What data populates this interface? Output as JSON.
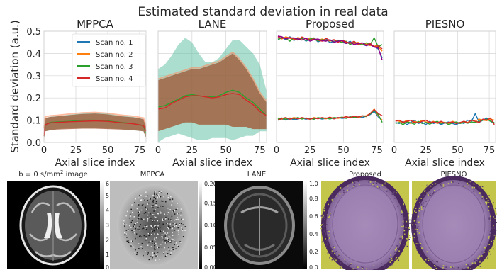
{
  "figure": {
    "title": "Estimated standard deviation in real data",
    "shared_ylabel": "Standard deviation (a.u.)",
    "shared_xlabel": "Axial slice index"
  },
  "colors": {
    "scan1": "#1f77b4",
    "scan2": "#ff7f0e",
    "scan3": "#2ca02c",
    "scan4": "#d62728",
    "band_green": "#66c2a5",
    "band_brown": "#a0522d",
    "band_red": "#fc8d62",
    "purple": "#8b008b",
    "mask_bg": "#9b7fb0",
    "mask_edge": "#c4c64c"
  },
  "chart_data": [
    {
      "type": "line",
      "title": "MPPCA",
      "xlabel": "Axial slice index",
      "ylabel": "Standard deviation (a.u.)",
      "xlim": [
        0,
        80
      ],
      "ylim": [
        0,
        0.5
      ],
      "xticks": [
        "0",
        "25",
        "50",
        "75"
      ],
      "yticks": [
        "0.0",
        "0.1",
        "0.2",
        "0.3",
        "0.4",
        "0.5"
      ],
      "legend": {
        "position": "top-right",
        "entries": [
          "Scan no. 1",
          "Scan no. 2",
          "Scan no. 3",
          "Scan no. 4"
        ]
      },
      "series": [
        {
          "name": "Scan no. 3",
          "color_key": "scan3",
          "x": [
            0,
            1,
            5,
            10,
            20,
            30,
            40,
            50,
            60,
            70,
            78,
            80
          ],
          "mean": [
            0.03,
            0.08,
            0.09,
            0.092,
            0.095,
            0.1,
            0.1,
            0.097,
            0.09,
            0.085,
            0.075,
            0.04
          ],
          "band_lo": [
            0.01,
            0.05,
            0.055,
            0.06,
            0.065,
            0.065,
            0.065,
            0.063,
            0.06,
            0.055,
            0.05,
            0.02
          ],
          "band_hi": [
            0.06,
            0.11,
            0.115,
            0.118,
            0.125,
            0.13,
            0.132,
            0.13,
            0.12,
            0.115,
            0.105,
            0.06
          ]
        },
        {
          "name": "Scan no. 4",
          "color_key": "scan4",
          "x": [
            0,
            1,
            5,
            10,
            20,
            30,
            40,
            50,
            60,
            70,
            78,
            80
          ],
          "mean": [
            0.03,
            0.08,
            0.088,
            0.09,
            0.093,
            0.095,
            0.097,
            0.095,
            0.089,
            0.084,
            0.076,
            0.05
          ],
          "band_lo": [
            0.01,
            0.05,
            0.055,
            0.058,
            0.06,
            0.062,
            0.062,
            0.06,
            0.058,
            0.055,
            0.05,
            0.02
          ],
          "band_hi": [
            0.06,
            0.11,
            0.115,
            0.117,
            0.123,
            0.128,
            0.13,
            0.126,
            0.118,
            0.113,
            0.105,
            0.07
          ]
        }
      ]
    },
    {
      "type": "line",
      "title": "LANE",
      "xlabel": "Axial slice index",
      "xlim": [
        0,
        80
      ],
      "ylim": [
        0,
        0.5
      ],
      "xticks": [
        "0",
        "25",
        "50",
        "75"
      ],
      "series": [
        {
          "name": "Scan no. 3",
          "color_key": "scan3",
          "x": [
            0,
            5,
            10,
            15,
            20,
            25,
            30,
            35,
            40,
            45,
            50,
            55,
            60,
            65,
            70,
            75,
            80
          ],
          "mean": [
            0.16,
            0.165,
            0.18,
            0.195,
            0.21,
            0.215,
            0.21,
            0.205,
            0.205,
            0.21,
            0.225,
            0.235,
            0.225,
            0.2,
            0.18,
            0.15,
            0.12
          ],
          "band_lo": [
            0.0,
            0.02,
            0.03,
            0.04,
            0.03,
            0.02,
            0.01,
            0.01,
            0.02,
            0.02,
            0.02,
            0.01,
            0.02,
            0.03,
            0.03,
            0.05,
            0.05
          ],
          "band_hi": [
            0.33,
            0.35,
            0.39,
            0.44,
            0.47,
            0.45,
            0.4,
            0.36,
            0.36,
            0.38,
            0.42,
            0.46,
            0.46,
            0.43,
            0.4,
            0.35,
            0.23
          ]
        },
        {
          "name": "Scan no. 4",
          "color_key": "scan4",
          "x": [
            0,
            5,
            10,
            15,
            20,
            25,
            30,
            35,
            40,
            45,
            50,
            55,
            60,
            65,
            70,
            75,
            80
          ],
          "mean": [
            0.15,
            0.155,
            0.175,
            0.19,
            0.205,
            0.21,
            0.21,
            0.205,
            0.2,
            0.205,
            0.215,
            0.22,
            0.215,
            0.19,
            0.17,
            0.14,
            0.12
          ],
          "band_lo": [
            0.05,
            0.06,
            0.07,
            0.08,
            0.09,
            0.09,
            0.08,
            0.08,
            0.08,
            0.08,
            0.08,
            0.07,
            0.07,
            0.07,
            0.06,
            0.06,
            0.06
          ],
          "band_hi": [
            0.28,
            0.29,
            0.3,
            0.31,
            0.32,
            0.33,
            0.33,
            0.34,
            0.35,
            0.36,
            0.38,
            0.4,
            0.37,
            0.33,
            0.28,
            0.22,
            0.18
          ]
        }
      ]
    },
    {
      "type": "line",
      "title": "Proposed",
      "xlabel": "Axial slice index",
      "xlim": [
        0,
        80
      ],
      "ylim": [
        0,
        0.5
      ],
      "xticks": [
        "0",
        "25",
        "50",
        "75"
      ],
      "series": [
        {
          "name": "Scan no. 1 (upper)",
          "color_key": "scan1",
          "x_start": 1,
          "x_step": 3,
          "values": [
            0.465,
            0.47,
            0.462,
            0.475,
            0.458,
            0.468,
            0.47,
            0.455,
            0.463,
            0.468,
            0.452,
            0.46,
            0.465,
            0.448,
            0.455,
            0.46,
            0.45,
            0.445,
            0.455,
            0.44,
            0.448,
            0.44,
            0.435,
            0.44,
            0.432,
            0.42,
            0.38
          ]
        },
        {
          "name": "Scan no. 2 (upper)",
          "color_key": "scan2",
          "x_start": 1,
          "x_step": 3,
          "values": [
            0.47,
            0.465,
            0.475,
            0.468,
            0.46,
            0.472,
            0.465,
            0.46,
            0.47,
            0.462,
            0.458,
            0.465,
            0.46,
            0.455,
            0.46,
            0.452,
            0.455,
            0.448,
            0.45,
            0.445,
            0.45,
            0.44,
            0.442,
            0.435,
            0.438,
            0.43,
            0.41
          ]
        },
        {
          "name": "Scan no. 3 (upper)",
          "color_key": "scan3",
          "x_start": 1,
          "x_step": 3,
          "values": [
            0.46,
            0.472,
            0.468,
            0.455,
            0.47,
            0.462,
            0.468,
            0.458,
            0.465,
            0.47,
            0.455,
            0.462,
            0.458,
            0.46,
            0.45,
            0.458,
            0.448,
            0.455,
            0.44,
            0.45,
            0.445,
            0.438,
            0.448,
            0.44,
            0.47,
            0.43,
            0.44
          ]
        },
        {
          "name": "Scan no. 4 (upper)",
          "color_key": "scan4",
          "x_start": 1,
          "x_step": 3,
          "values": [
            0.475,
            0.468,
            0.47,
            0.472,
            0.465,
            0.46,
            0.474,
            0.466,
            0.46,
            0.465,
            0.46,
            0.455,
            0.468,
            0.458,
            0.462,
            0.45,
            0.46,
            0.452,
            0.445,
            0.455,
            0.44,
            0.448,
            0.438,
            0.445,
            0.43,
            0.435,
            0.42
          ]
        },
        {
          "name": "Purple (upper)",
          "color_key": "purple",
          "x_start": 1,
          "x_step": 3,
          "values": [
            0.478,
            0.475,
            0.465,
            0.47,
            0.47,
            0.465,
            0.46,
            0.47,
            0.455,
            0.462,
            0.465,
            0.458,
            0.455,
            0.462,
            0.45,
            0.455,
            0.458,
            0.445,
            0.45,
            0.44,
            0.445,
            0.448,
            0.435,
            0.44,
            0.428,
            0.425,
            0.37
          ]
        },
        {
          "name": "Scan no. 1 (lower)",
          "color_key": "scan1",
          "x_start": 1,
          "x_step": 3,
          "values": [
            0.1,
            0.105,
            0.1,
            0.108,
            0.102,
            0.105,
            0.11,
            0.104,
            0.108,
            0.106,
            0.11,
            0.105,
            0.108,
            0.11,
            0.106,
            0.112,
            0.108,
            0.11,
            0.114,
            0.11,
            0.115,
            0.112,
            0.118,
            0.125,
            0.14,
            0.115,
            0.1
          ]
        },
        {
          "name": "Scan no. 2 (lower)",
          "color_key": "scan2",
          "x_start": 1,
          "x_step": 3,
          "values": [
            0.11,
            0.105,
            0.11,
            0.106,
            0.112,
            0.108,
            0.106,
            0.11,
            0.105,
            0.112,
            0.108,
            0.11,
            0.106,
            0.112,
            0.11,
            0.108,
            0.112,
            0.115,
            0.11,
            0.116,
            0.112,
            0.118,
            0.12,
            0.13,
            0.15,
            0.12,
            0.1
          ]
        },
        {
          "name": "Scan no. 3 (lower)",
          "color_key": "scan3",
          "x_start": 1,
          "x_step": 3,
          "values": [
            0.105,
            0.11,
            0.104,
            0.11,
            0.106,
            0.112,
            0.105,
            0.11,
            0.108,
            0.104,
            0.112,
            0.108,
            0.11,
            0.105,
            0.112,
            0.11,
            0.114,
            0.108,
            0.116,
            0.112,
            0.115,
            0.12,
            0.116,
            0.128,
            0.145,
            0.125,
            0.09
          ]
        },
        {
          "name": "Scan no. 4 (lower)",
          "color_key": "scan4",
          "x_start": 1,
          "x_step": 3,
          "values": [
            0.1,
            0.108,
            0.112,
            0.104,
            0.11,
            0.106,
            0.112,
            0.108,
            0.104,
            0.11,
            0.106,
            0.112,
            0.108,
            0.114,
            0.106,
            0.112,
            0.11,
            0.116,
            0.112,
            0.118,
            0.114,
            0.12,
            0.118,
            0.13,
            0.148,
            0.13,
            0.12
          ]
        }
      ]
    },
    {
      "type": "line",
      "title": "PIESNO",
      "xlabel": "Axial slice index",
      "xlim": [
        0,
        80
      ],
      "ylim": [
        0,
        0.5
      ],
      "xticks": [
        "0",
        "25",
        "50",
        "75"
      ],
      "series": [
        {
          "name": "Scan no. 1",
          "color_key": "scan1",
          "x_start": 1,
          "x_step": 3,
          "values": [
            0.09,
            0.085,
            0.095,
            0.08,
            0.09,
            0.1,
            0.085,
            0.09,
            0.08,
            0.095,
            0.085,
            0.09,
            0.08,
            0.088,
            0.092,
            0.085,
            0.08,
            0.09,
            0.085,
            0.1,
            0.095,
            0.13,
            0.09,
            0.1,
            0.11,
            0.095,
            0.085
          ]
        },
        {
          "name": "Scan no. 2",
          "color_key": "scan2",
          "x_start": 1,
          "x_step": 3,
          "values": [
            0.1,
            0.095,
            0.09,
            0.1,
            0.085,
            0.095,
            0.09,
            0.1,
            0.092,
            0.088,
            0.095,
            0.085,
            0.092,
            0.09,
            0.085,
            0.095,
            0.09,
            0.088,
            0.095,
            0.09,
            0.1,
            0.095,
            0.105,
            0.1,
            0.098,
            0.105,
            0.1
          ]
        },
        {
          "name": "Scan no. 3",
          "color_key": "scan3",
          "x_start": 1,
          "x_step": 3,
          "values": [
            0.085,
            0.09,
            0.08,
            0.092,
            0.088,
            0.082,
            0.095,
            0.085,
            0.09,
            0.082,
            0.09,
            0.095,
            0.085,
            0.09,
            0.08,
            0.088,
            0.092,
            0.085,
            0.09,
            0.086,
            0.092,
            0.09,
            0.095,
            0.1,
            0.105,
            0.095,
            0.09
          ]
        },
        {
          "name": "Scan no. 4",
          "color_key": "scan4",
          "x_start": 1,
          "x_step": 3,
          "values": [
            0.095,
            0.1,
            0.09,
            0.095,
            0.1,
            0.09,
            0.088,
            0.095,
            0.1,
            0.09,
            0.092,
            0.088,
            0.095,
            0.086,
            0.09,
            0.092,
            0.085,
            0.09,
            0.095,
            0.088,
            0.1,
            0.095,
            0.09,
            0.105,
            0.1,
            0.11,
            0.08
          ]
        }
      ]
    },
    {
      "type": "heatmap",
      "title": "b = 0 s/mm² image",
      "colorbar_ticks": [
        "0",
        "1",
        "2",
        "3",
        "4",
        "5",
        "6"
      ]
    },
    {
      "type": "heatmap",
      "title": "MPPCA",
      "colorbar_ticks": [
        "0.00",
        "0.05",
        "0.10",
        "0.15",
        "0.20"
      ]
    },
    {
      "type": "heatmap",
      "title": "LANE",
      "colorbar_ticks": [
        "0.0",
        "0.2",
        "0.4",
        "0.6",
        "0.8",
        "1.0"
      ]
    },
    {
      "type": "heatmap",
      "title": "Proposed"
    },
    {
      "type": "heatmap",
      "title": "PIESNO"
    }
  ]
}
